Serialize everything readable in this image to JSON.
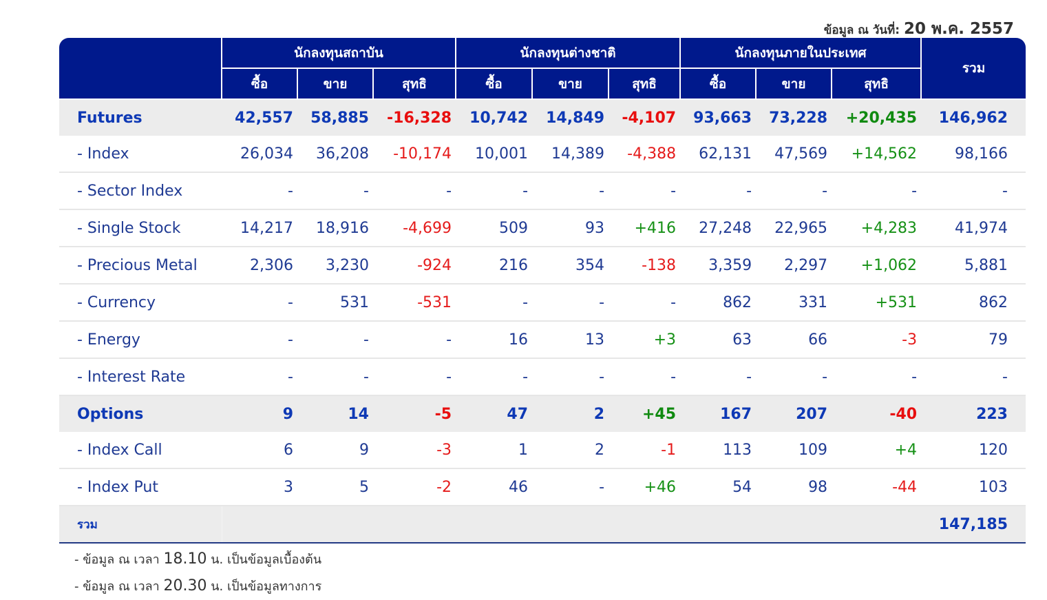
{
  "date_label": "ข้อมูล ณ วันที่:",
  "date_value": "20 พ.ค. 2557",
  "header": {
    "groups": [
      "นักลงทุนสถาบัน",
      "นักลงทุนต่างชาติ",
      "นักลงทุนภายในประเทศ"
    ],
    "total": "รวม",
    "sub": [
      "ซื้อ",
      "ขาย",
      "สุทธิ"
    ]
  },
  "rows": [
    {
      "label": "Futures",
      "bold": true,
      "values": [
        "42,557",
        "58,885",
        "-16,328",
        "10,742",
        "14,849",
        "-4,107",
        "93,663",
        "73,228",
        "+20,435",
        "146,962"
      ]
    },
    {
      "label": "- Index",
      "values": [
        "26,034",
        "36,208",
        "-10,174",
        "10,001",
        "14,389",
        "-4,388",
        "62,131",
        "47,569",
        "+14,562",
        "98,166"
      ]
    },
    {
      "label": "- Sector Index",
      "values": [
        "-",
        "-",
        "-",
        "-",
        "-",
        "-",
        "-",
        "-",
        "-",
        "-"
      ]
    },
    {
      "label": "- Single Stock",
      "values": [
        "14,217",
        "18,916",
        "-4,699",
        "509",
        "93",
        "+416",
        "27,248",
        "22,965",
        "+4,283",
        "41,974"
      ]
    },
    {
      "label": "- Precious Metal",
      "values": [
        "2,306",
        "3,230",
        "-924",
        "216",
        "354",
        "-138",
        "3,359",
        "2,297",
        "+1,062",
        "5,881"
      ]
    },
    {
      "label": "- Currency",
      "values": [
        "-",
        "531",
        "-531",
        "-",
        "-",
        "-",
        "862",
        "331",
        "+531",
        "862"
      ]
    },
    {
      "label": "- Energy",
      "values": [
        "-",
        "-",
        "-",
        "16",
        "13",
        "+3",
        "63",
        "66",
        "-3",
        "79"
      ]
    },
    {
      "label": "- Interest Rate",
      "values": [
        "-",
        "-",
        "-",
        "-",
        "-",
        "-",
        "-",
        "-",
        "-",
        "-"
      ]
    },
    {
      "label": "Options",
      "bold": true,
      "values": [
        "9",
        "14",
        "-5",
        "47",
        "2",
        "+45",
        "167",
        "207",
        "-40",
        "223"
      ]
    },
    {
      "label": "- Index Call",
      "values": [
        "6",
        "9",
        "-3",
        "1",
        "2",
        "-1",
        "113",
        "109",
        "+4",
        "120"
      ]
    },
    {
      "label": "- Index Put",
      "values": [
        "3",
        "5",
        "-2",
        "46",
        "-",
        "+46",
        "54",
        "98",
        "-44",
        "103"
      ]
    }
  ],
  "summary": {
    "label": "รวม",
    "total": "147,185"
  },
  "notes": [
    {
      "pre": "- ข้อมูล ณ เวลา",
      "time": "18.10",
      "post": "น. เป็นข้อมูลเบื้องต้น"
    },
    {
      "pre": "- ข้อมูล ณ เวลา",
      "time": "20.30",
      "post": "น. เป็นข้อมูลทางการ"
    }
  ],
  "colors": {
    "header": "#00198c",
    "positive": "#159015",
    "negative": "#e51b1b",
    "text": "#1f3a93"
  }
}
